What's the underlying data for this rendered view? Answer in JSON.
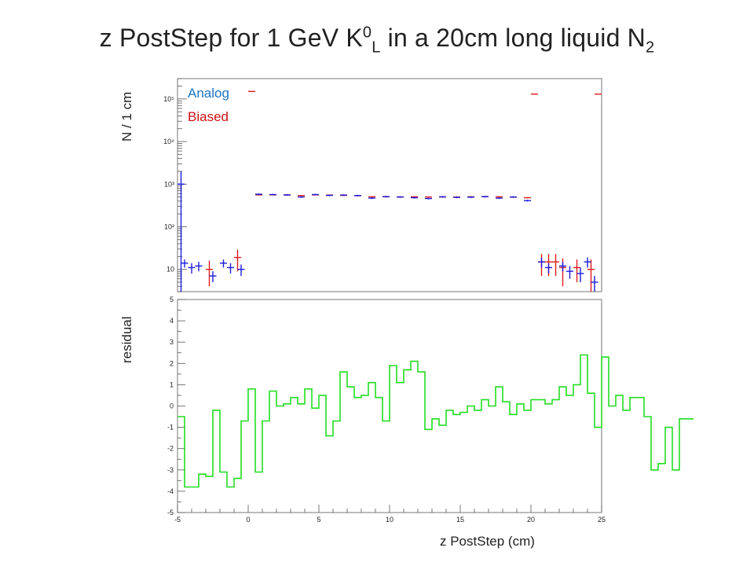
{
  "title": {
    "before": "z PostStep for 1 GeV K",
    "sup": "0",
    "sub1": "L",
    "after": " in a 20cm long liquid N",
    "sub2": "2"
  },
  "colors": {
    "analog": "#1c1cdc",
    "biased": "#e21c1c",
    "residual": "#22dd22",
    "legend_analog": "#1a74c4",
    "legend_biased": "#cc1111"
  },
  "chart_data": [
    {
      "type": "scatter",
      "ylabel": "N / 1 cm",
      "yscale": "log",
      "ylim": [
        3,
        300000
      ],
      "xlim": [
        -5,
        25
      ],
      "yticks": [
        10,
        100,
        1000,
        10000,
        100000
      ],
      "ytick_labels": [
        "10",
        "10²",
        "10³",
        "10⁴",
        "10⁵"
      ],
      "legend": {
        "position": "top-left",
        "entries": [
          "Analog",
          "Biased"
        ]
      },
      "series": [
        {
          "name": "Analog",
          "color": "#1c1cdc",
          "points": [
            [
              -4.75,
              1000,
              1000
            ],
            [
              -4.5,
              14,
              3
            ],
            [
              -4.0,
              11,
              3
            ],
            [
              -3.5,
              12,
              3
            ],
            [
              -2.5,
              7,
              2
            ],
            [
              -1.75,
              14,
              3
            ],
            [
              -1.25,
              11,
              3
            ],
            [
              -0.5,
              10,
              3
            ],
            [
              0.75,
              580,
              24
            ],
            [
              1.75,
              570,
              24
            ],
            [
              2.75,
              560,
              24
            ],
            [
              3.75,
              500,
              22
            ],
            [
              4.75,
              570,
              24
            ],
            [
              5.75,
              545,
              23
            ],
            [
              6.75,
              555,
              24
            ],
            [
              7.75,
              540,
              23
            ],
            [
              8.75,
              470,
              22
            ],
            [
              9.75,
              510,
              23
            ],
            [
              10.75,
              500,
              22
            ],
            [
              11.75,
              480,
              22
            ],
            [
              12.75,
              460,
              21
            ],
            [
              13.75,
              505,
              22
            ],
            [
              14.75,
              490,
              22
            ],
            [
              15.75,
              495,
              22
            ],
            [
              16.75,
              510,
              23
            ],
            [
              17.75,
              470,
              22
            ],
            [
              18.75,
              500,
              22
            ],
            [
              19.75,
              410,
              20
            ],
            [
              20.75,
              15,
              4
            ],
            [
              21.25,
              11,
              3
            ],
            [
              22.25,
              12,
              3
            ],
            [
              22.75,
              9,
              3
            ],
            [
              23.5,
              8,
              3
            ],
            [
              24.0,
              15,
              4
            ],
            [
              24.5,
              5,
              2
            ]
          ]
        },
        {
          "name": "Biased",
          "color": "#e21c1c",
          "points": [
            [
              -2.75,
              10,
              6
            ],
            [
              -0.75,
              19,
              10
            ],
            [
              0.75,
              560,
              15
            ],
            [
              1.75,
              560,
              15
            ],
            [
              2.75,
              555,
              15
            ],
            [
              3.75,
              540,
              15
            ],
            [
              4.75,
              560,
              15
            ],
            [
              5.75,
              555,
              15
            ],
            [
              6.75,
              545,
              15
            ],
            [
              7.75,
              535,
              15
            ],
            [
              8.75,
              505,
              15
            ],
            [
              9.75,
              505,
              15
            ],
            [
              10.75,
              500,
              15
            ],
            [
              11.75,
              505,
              15
            ],
            [
              12.75,
              500,
              15
            ],
            [
              13.75,
              500,
              15
            ],
            [
              14.75,
              500,
              15
            ],
            [
              15.75,
              505,
              15
            ],
            [
              16.75,
              510,
              15
            ],
            [
              17.75,
              505,
              15
            ],
            [
              18.75,
              495,
              15
            ],
            [
              19.75,
              480,
              15
            ],
            [
              20.75,
              15,
              8
            ],
            [
              21.25,
              15,
              8
            ],
            [
              21.75,
              15,
              8
            ],
            [
              22.25,
              11,
              7
            ],
            [
              23.25,
              11,
              6
            ],
            [
              24.25,
              10,
              7
            ],
            [
              0.25,
              150000,
              0
            ],
            [
              20.25,
              130000,
              0
            ],
            [
              24.75,
              130000,
              0
            ]
          ]
        }
      ]
    },
    {
      "type": "line",
      "ylabel": "residual",
      "xlabel": "z PostStep (cm)",
      "xlim": [
        -5,
        25
      ],
      "ylim": [
        -5,
        5
      ],
      "xticks": [
        -5,
        0,
        5,
        10,
        15,
        20,
        25
      ],
      "yticks": [
        -5,
        -4,
        -3,
        -2,
        -1,
        0,
        1,
        2,
        3,
        4,
        5
      ],
      "series": [
        {
          "name": "residual",
          "color": "#22dd22",
          "bin_width": 0.5,
          "bin_start": -5,
          "values": [
            -0.5,
            -3.8,
            -3.8,
            -3.2,
            -3.3,
            -0.2,
            -3.1,
            -3.8,
            -3.4,
            -0.7,
            0.8,
            -3.1,
            -0.7,
            0.7,
            0.0,
            0.1,
            0.4,
            0.1,
            0.8,
            -0.1,
            0.5,
            -1.4,
            -0.7,
            1.6,
            0.9,
            0.4,
            0.5,
            1.1,
            0.4,
            -0.7,
            1.9,
            1.1,
            1.7,
            2.1,
            1.6,
            -1.1,
            -0.6,
            -0.9,
            -0.2,
            -0.4,
            -0.3,
            0.0,
            -0.2,
            0.3,
            0.0,
            0.9,
            0.2,
            -0.4,
            0.1,
            -0.2,
            0.3,
            0.3,
            0.1,
            0.3,
            0.9,
            0.5,
            1.0,
            2.4,
            0.6,
            -1.0,
            2.3,
            0.0,
            0.5,
            -0.2,
            0.4,
            0.4,
            -0.5,
            -3.0,
            -2.7,
            -1.0,
            -3.0,
            -0.6,
            -0.6
          ]
        }
      ]
    }
  ],
  "axis_labels": {
    "top_y": "N / 1 cm",
    "bottom_y": "residual",
    "x": "z PostStep (cm)"
  }
}
